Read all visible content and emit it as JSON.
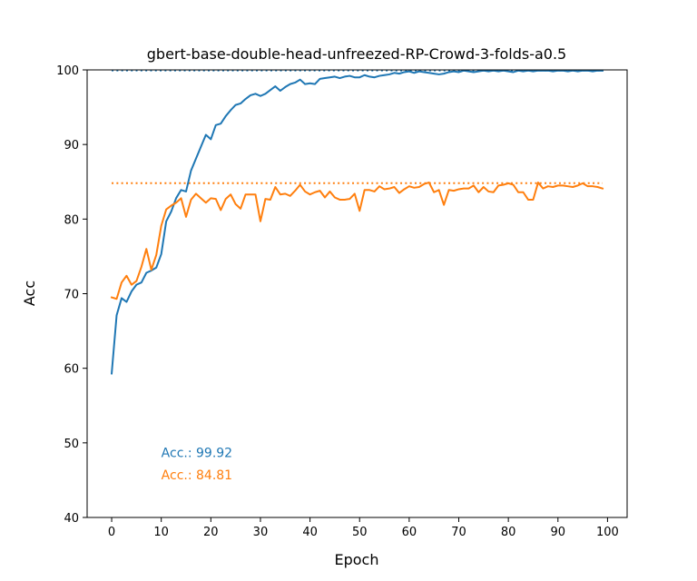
{
  "chart_data": {
    "type": "line",
    "title": "gbert-base-double-head-unfreezed-RP-Crowd-3-folds-a0.5",
    "xlabel": "Epoch",
    "ylabel": "Acc",
    "xlim": [
      -4.95,
      103.95
    ],
    "ylim": [
      40,
      100
    ],
    "xticks": [
      0,
      10,
      20,
      30,
      40,
      50,
      60,
      70,
      80,
      90,
      100
    ],
    "yticks": [
      40,
      50,
      60,
      70,
      80,
      90,
      100
    ],
    "xtick_labels": [
      "0",
      "10",
      "20",
      "30",
      "40",
      "50",
      "60",
      "70",
      "80",
      "90",
      "100"
    ],
    "ytick_labels": [
      "40",
      "50",
      "60",
      "70",
      "80",
      "90",
      "100"
    ],
    "grid": false,
    "series": [
      {
        "color": "#1f77b4",
        "style": "solid",
        "values": [
          59.3,
          67.1,
          69.4,
          68.9,
          70.3,
          71.2,
          71.5,
          72.8,
          73.1,
          73.5,
          75.3,
          79.7,
          81.0,
          82.8,
          83.9,
          83.7,
          86.5,
          88.1,
          89.7,
          91.3,
          90.7,
          92.6,
          92.8,
          93.8,
          94.6,
          95.3,
          95.5,
          96.1,
          96.6,
          96.8,
          96.5,
          96.8,
          97.3,
          97.8,
          97.2,
          97.7,
          98.1,
          98.3,
          98.7,
          98.1,
          98.2,
          98.1,
          98.8,
          98.9,
          99.0,
          99.1,
          98.9,
          99.1,
          99.2,
          99.0,
          99.0,
          99.3,
          99.1,
          99.0,
          99.2,
          99.3,
          99.4,
          99.6,
          99.5,
          99.7,
          99.8,
          99.6,
          99.8,
          99.7,
          99.6,
          99.5,
          99.4,
          99.5,
          99.7,
          99.8,
          99.7,
          99.9,
          99.8,
          99.7,
          99.8,
          99.9,
          99.8,
          99.9,
          99.8,
          99.9,
          99.8,
          99.7,
          99.9,
          99.8,
          99.9,
          99.8,
          99.9,
          99.9,
          99.9,
          99.8,
          99.9,
          99.9,
          99.8,
          99.9,
          99.8,
          99.9,
          99.9,
          99.8,
          99.9,
          99.9
        ]
      },
      {
        "color": "#ff7f0e",
        "style": "solid",
        "values": [
          69.5,
          69.3,
          71.5,
          72.4,
          71.2,
          71.7,
          73.6,
          76.0,
          73.2,
          75.2,
          79.1,
          81.3,
          81.8,
          82.2,
          82.8,
          80.3,
          82.6,
          83.4,
          82.8,
          82.2,
          82.8,
          82.7,
          81.2,
          82.7,
          83.3,
          82.0,
          81.4,
          83.3,
          83.3,
          83.3,
          79.7,
          82.7,
          82.6,
          84.3,
          83.3,
          83.4,
          83.1,
          83.8,
          84.6,
          83.7,
          83.3,
          83.6,
          83.8,
          82.9,
          83.7,
          82.9,
          82.6,
          82.6,
          82.7,
          83.4,
          81.1,
          83.9,
          83.9,
          83.7,
          84.4,
          84.0,
          84.1,
          84.3,
          83.5,
          84.0,
          84.4,
          84.2,
          84.3,
          84.7,
          84.9,
          83.6,
          83.9,
          81.9,
          83.9,
          83.8,
          84.0,
          84.1,
          84.1,
          84.5,
          83.6,
          84.3,
          83.7,
          83.6,
          84.5,
          84.6,
          84.8,
          84.6,
          83.6,
          83.6,
          82.6,
          82.6,
          84.9,
          84.1,
          84.4,
          84.3,
          84.5,
          84.5,
          84.4,
          84.3,
          84.5,
          84.8,
          84.4,
          84.4,
          84.3,
          84.1
        ]
      }
    ],
    "reference_lines": [
      {
        "y": 99.92,
        "color": "#1f77b4",
        "style": "dotted"
      },
      {
        "y": 84.81,
        "color": "#ff7f0e",
        "style": "dotted"
      }
    ],
    "annotations": [
      {
        "text": "Acc.: 99.92",
        "color": "#1f77b4",
        "x": 10,
        "y": 48.1
      },
      {
        "text": "Acc.: 84.81",
        "color": "#ff7f0e",
        "x": 10,
        "y": 45.1
      }
    ]
  }
}
